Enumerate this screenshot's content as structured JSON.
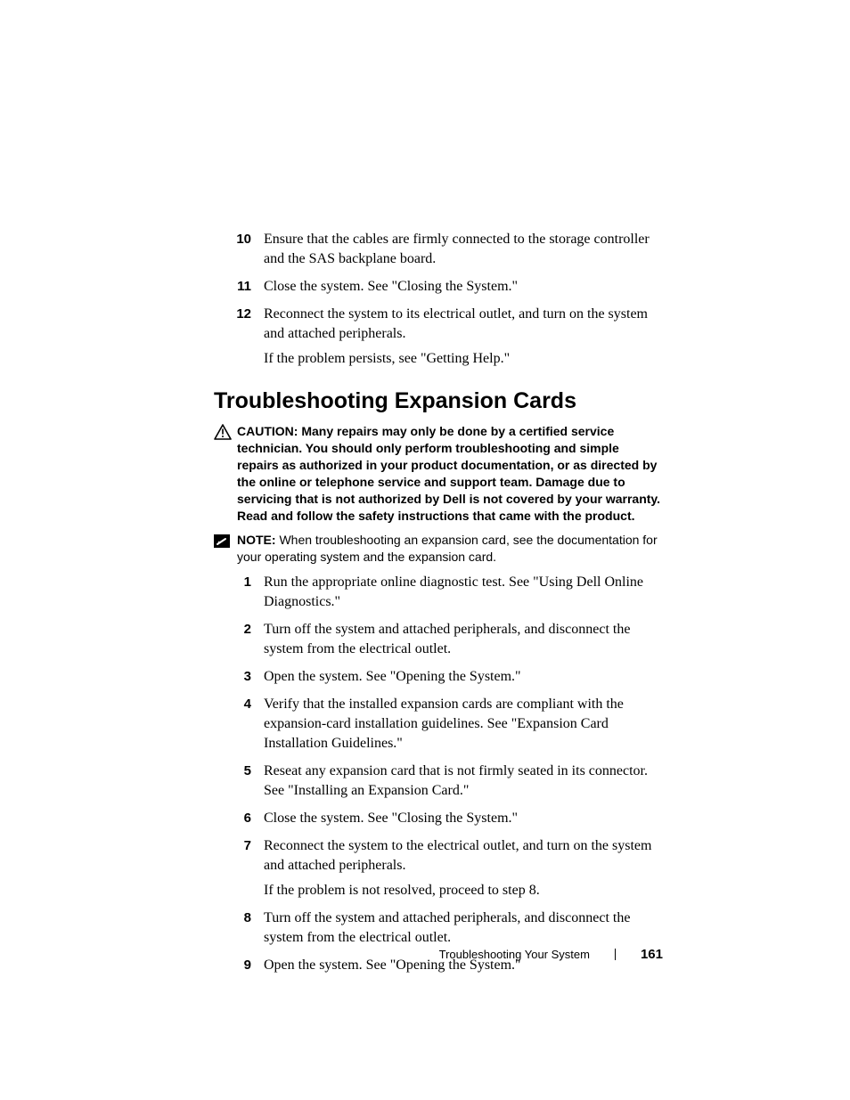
{
  "top_list": [
    {
      "n": "10",
      "paras": [
        "Ensure that the cables are firmly connected to the storage controller and the SAS backplane board."
      ]
    },
    {
      "n": "11",
      "paras": [
        "Close the system. See \"Closing the System.\""
      ]
    },
    {
      "n": "12",
      "paras": [
        "Reconnect the system to its electrical outlet, and turn on the system and attached peripherals.",
        "If the problem persists, see \"Getting Help.\""
      ]
    }
  ],
  "section_title": "Troubleshooting Expansion Cards",
  "caution": {
    "label": "CAUTION: ",
    "text": "Many repairs may only be done by a certified service technician. You should only perform troubleshooting and simple repairs as authorized in your product documentation, or as directed by the online or telephone service and support team. Damage due to servicing that is not authorized by Dell is not covered by your warranty. Read and follow the safety instructions that came with the product."
  },
  "note": {
    "label": "NOTE: ",
    "text": "When troubleshooting an expansion card, see the documentation for your operating system and the expansion card."
  },
  "steps": [
    {
      "n": "1",
      "paras": [
        "Run the appropriate online diagnostic test. See \"Using Dell Online Diagnostics.\""
      ]
    },
    {
      "n": "2",
      "paras": [
        "Turn off the system and attached peripherals, and disconnect the system from the electrical outlet."
      ]
    },
    {
      "n": "3",
      "paras": [
        "Open the system. See \"Opening the System.\""
      ]
    },
    {
      "n": "4",
      "paras": [
        "Verify that the installed expansion cards are compliant with the expansion-card installation guidelines. See \"Expansion Card Installation Guidelines.\""
      ]
    },
    {
      "n": "5",
      "paras": [
        "Reseat any expansion card that is not firmly seated in its connector. See \"Installing an Expansion Card.\""
      ]
    },
    {
      "n": "6",
      "paras": [
        "Close the system. See \"Closing the System.\""
      ]
    },
    {
      "n": "7",
      "paras": [
        "Reconnect the system to the electrical outlet, and turn on the system and attached peripherals.",
        "If the problem is not resolved, proceed to step 8."
      ]
    },
    {
      "n": "8",
      "paras": [
        "Turn off the system and attached peripherals, and disconnect the system from the electrical outlet."
      ]
    },
    {
      "n": "9",
      "paras": [
        "Open the system. See \"Opening the System.\""
      ]
    }
  ],
  "footer": {
    "title": "Troubleshooting Your System",
    "page": "161"
  },
  "style": {
    "body_fontsize": 16,
    "list_num_fontsize": 15,
    "heading_fontsize": 25,
    "callout_fontsize": 14,
    "footer_fontsize": 13,
    "text_color": "#000000",
    "background_color": "#ffffff"
  }
}
